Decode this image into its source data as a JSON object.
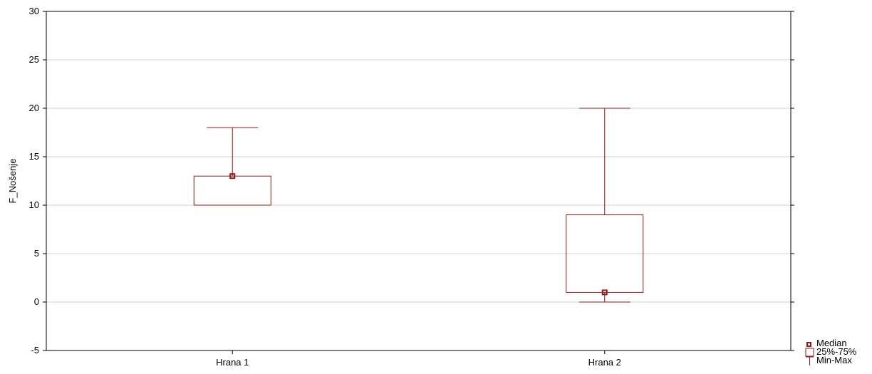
{
  "chart_data": {
    "type": "boxplot",
    "title": "",
    "xlabel": "",
    "ylabel": "F_Nošenje",
    "ylim": [
      -5,
      30
    ],
    "yticks": [
      -5,
      0,
      5,
      10,
      15,
      20,
      25,
      30
    ],
    "grid": true,
    "categories": [
      "Hrana 1",
      "Hrana 2"
    ],
    "series": [
      {
        "category": "Hrana 1",
        "min": 10,
        "q1": 10,
        "median": 13,
        "q3": 13,
        "max": 18
      },
      {
        "category": "Hrana 2",
        "min": 0,
        "q1": 1,
        "median": 1,
        "q3": 9,
        "max": 20
      }
    ],
    "legend": {
      "placement": "bottom-right",
      "items": [
        {
          "label": "Median",
          "symbol": "median-point"
        },
        {
          "label": "25%-75%",
          "symbol": "box"
        },
        {
          "label": "Min-Max",
          "symbol": "whisker"
        }
      ]
    },
    "colors": {
      "series": "#8b1a1a",
      "grid": "#d0d0d0",
      "axis": "#000000"
    }
  }
}
